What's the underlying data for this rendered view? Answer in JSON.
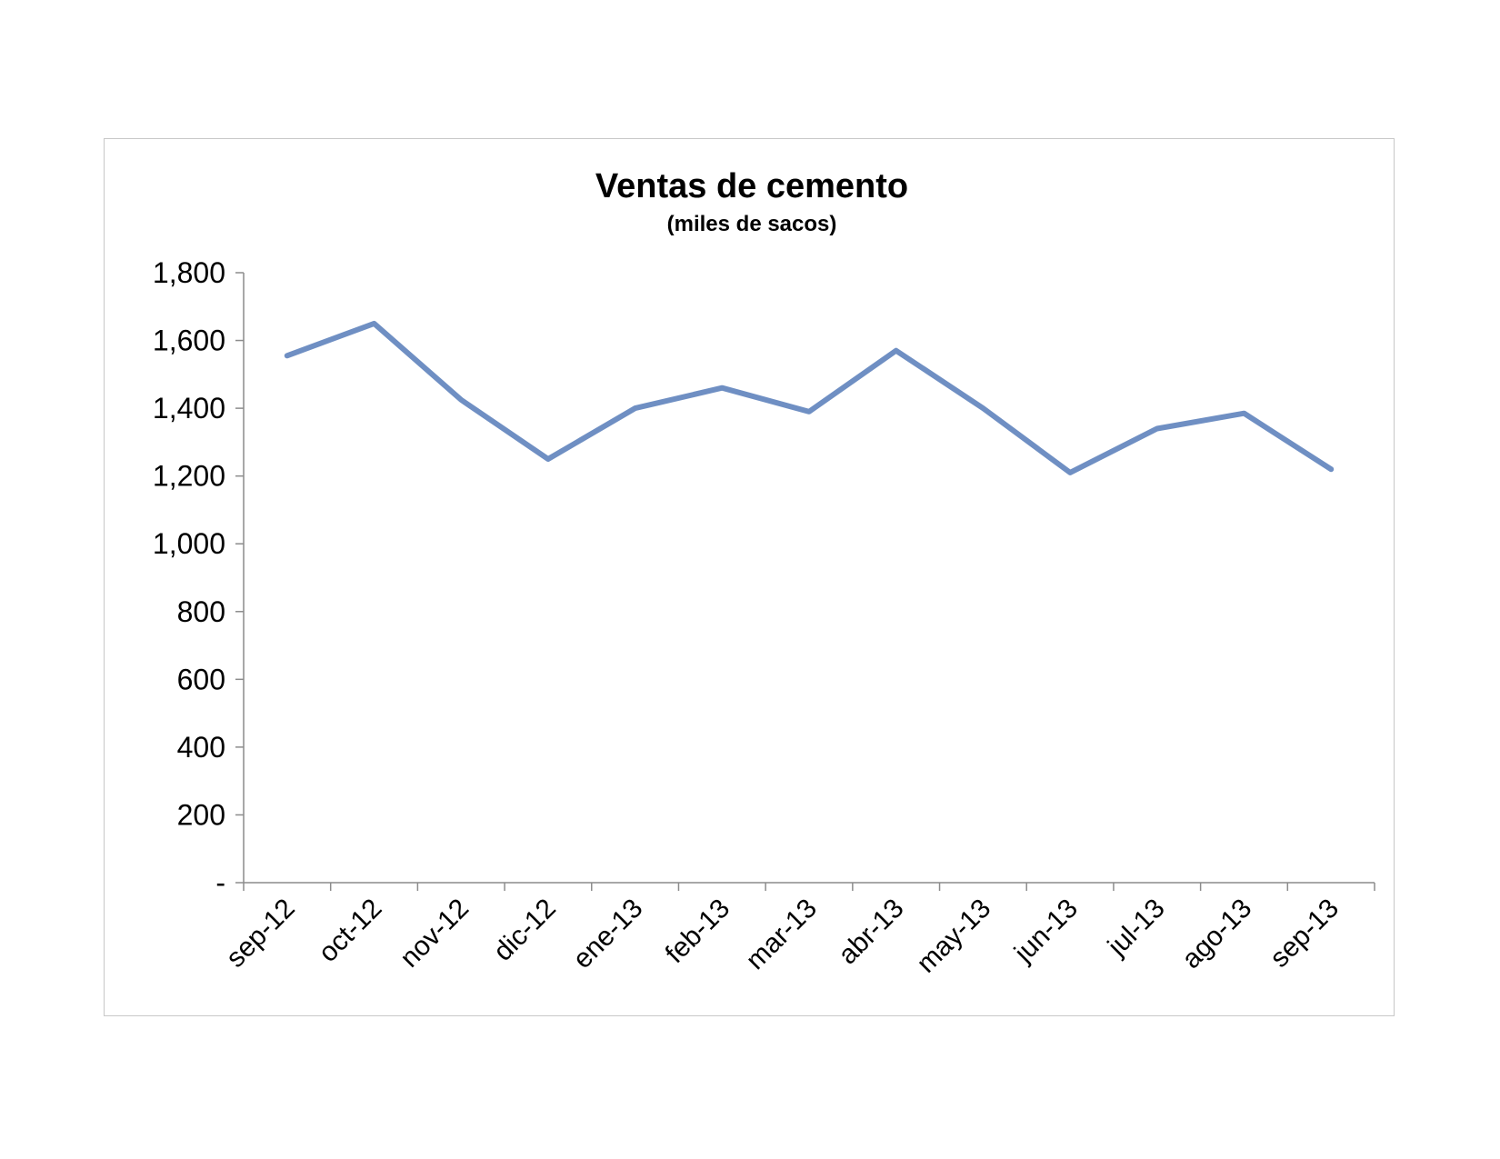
{
  "chart_data": {
    "type": "line",
    "title": "Ventas de cemento",
    "subtitle": "(miles de sacos)",
    "xlabel": "",
    "ylabel": "",
    "categories": [
      "sep-12",
      "oct-12",
      "nov-12",
      "dic-12",
      "ene-13",
      "feb-13",
      "mar-13",
      "abr-13",
      "may-13",
      "jun-13",
      "jul-13",
      "ago-13",
      "sep-13"
    ],
    "series": [
      {
        "values": [
          1555,
          1650,
          1425,
          1250,
          1400,
          1460,
          1390,
          1570,
          1400,
          1210,
          1340,
          1385,
          1220
        ]
      }
    ],
    "ylim": [
      0,
      1800
    ],
    "yticks": [
      0,
      200,
      400,
      600,
      800,
      1000,
      1200,
      1400,
      1600,
      1800
    ],
    "ytick_labels": [
      "-",
      "200",
      "400",
      "600",
      "800",
      "1,000",
      "1,200",
      "1,400",
      "1,600",
      "1,800"
    ],
    "grid": false,
    "legend": "none",
    "colors": {
      "series": "#6f8fc3",
      "axis": "#8c8c8c"
    }
  }
}
